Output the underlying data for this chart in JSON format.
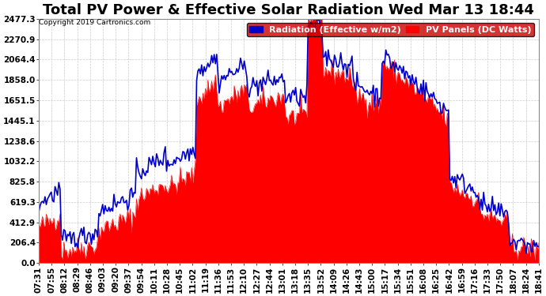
{
  "title": "Total PV Power & Effective Solar Radiation Wed Mar 13 18:44",
  "copyright": "Copyright 2019 Cartronics.com",
  "legend_labels": [
    "Radiation (Effective w/m2)",
    "PV Panels (DC Watts)"
  ],
  "legend_colors": [
    "#0000cc",
    "#ff0000"
  ],
  "legend_bg": "#cc0000",
  "ytick_labels": [
    "2477.3",
    "2270.9",
    "2064.4",
    "1858.0",
    "1651.5",
    "1445.1",
    "1238.6",
    "1032.2",
    "825.8",
    "619.3",
    "412.9",
    "206.4",
    "0.0"
  ],
  "ymax": 2477.3,
  "ymin": 0.0,
  "background_color": "#ffffff",
  "plot_bg": "#ffffff",
  "grid_color": "#cccccc",
  "xtick_labels": [
    "07:31",
    "07:55",
    "08:12",
    "08:29",
    "08:46",
    "09:03",
    "09:20",
    "09:37",
    "09:54",
    "10:11",
    "10:28",
    "10:45",
    "11:02",
    "11:19",
    "11:36",
    "11:53",
    "12:10",
    "12:27",
    "12:44",
    "13:01",
    "13:18",
    "13:35",
    "13:52",
    "14:09",
    "14:26",
    "14:43",
    "15:00",
    "15:17",
    "15:34",
    "15:51",
    "16:08",
    "16:25",
    "16:42",
    "16:59",
    "17:16",
    "17:33",
    "17:50",
    "18:07",
    "18:24",
    "18:41"
  ],
  "title_fontsize": 13,
  "tick_fontsize": 7.5,
  "legend_fontsize": 8
}
